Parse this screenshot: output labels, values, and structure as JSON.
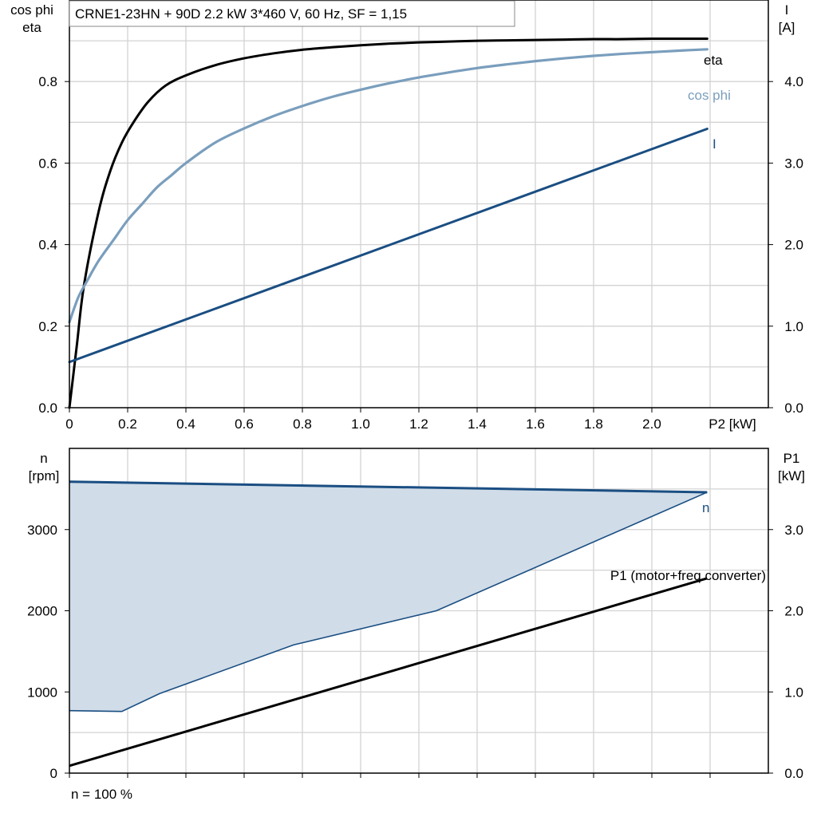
{
  "colors": {
    "eta": "#000000",
    "cos_phi": "#7a9ebd",
    "current": "#1a4e82",
    "speed": "#1a4e82",
    "speed_fill": "#d0dce8",
    "p1": "#000000",
    "grid": "#d3d3d3"
  },
  "footer_note": "n = 100 %",
  "chart_data": [
    {
      "type": "line",
      "title": "CRNE1-23HN + 90D   2.2 kW   3*460 V, 60 Hz, SF = 1,15",
      "ylabel_left": [
        "cos phi",
        "eta"
      ],
      "ylabel_right": [
        "I",
        "[A]"
      ],
      "xlabel": "P2 [kW]",
      "xlim": [
        0,
        2.4
      ],
      "ylim_left": [
        0,
        1.0
      ],
      "ylim_right": [
        0,
        5.0
      ],
      "x_ticks": [
        "0",
        "0.2",
        "0.4",
        "0.6",
        "0.8",
        "1.0",
        "1.2",
        "1.4",
        "1.6",
        "1.8",
        "2.0"
      ],
      "y_left_ticks": [
        "0.0",
        "0.2",
        "0.4",
        "0.6",
        "0.8"
      ],
      "y_right_ticks": [
        "0.0",
        "1.0",
        "2.0",
        "3.0",
        "4.0"
      ],
      "grid": true,
      "series": [
        {
          "name": "eta",
          "axis": "left",
          "x": [
            0,
            0.025,
            0.05,
            0.1,
            0.14,
            0.18,
            0.22,
            0.27,
            0.33,
            0.4,
            0.5,
            0.6,
            0.7,
            0.8,
            0.9,
            1.0,
            1.1,
            1.2,
            1.3,
            1.4,
            1.5,
            1.6,
            1.7,
            1.8,
            1.9,
            2.0,
            2.1,
            2.19
          ],
          "y": [
            0.0,
            0.15,
            0.3,
            0.48,
            0.58,
            0.65,
            0.7,
            0.75,
            0.79,
            0.815,
            0.84,
            0.857,
            0.869,
            0.878,
            0.884,
            0.889,
            0.893,
            0.896,
            0.898,
            0.9,
            0.901,
            0.902,
            0.903,
            0.904,
            0.904,
            0.905,
            0.905,
            0.905
          ]
        },
        {
          "name": "cos phi",
          "axis": "left",
          "x": [
            0,
            0.03,
            0.06,
            0.1,
            0.15,
            0.2,
            0.25,
            0.3,
            0.35,
            0.4,
            0.5,
            0.6,
            0.7,
            0.8,
            0.9,
            1.0,
            1.1,
            1.2,
            1.3,
            1.4,
            1.5,
            1.6,
            1.7,
            1.8,
            1.9,
            2.0,
            2.1,
            2.19
          ],
          "y": [
            0.21,
            0.27,
            0.31,
            0.36,
            0.41,
            0.46,
            0.5,
            0.54,
            0.57,
            0.6,
            0.65,
            0.685,
            0.715,
            0.74,
            0.762,
            0.78,
            0.796,
            0.81,
            0.822,
            0.833,
            0.842,
            0.85,
            0.857,
            0.863,
            0.868,
            0.872,
            0.876,
            0.879
          ]
        },
        {
          "name": "I",
          "axis": "right",
          "x": [
            0,
            2.19
          ],
          "y": [
            0.56,
            3.42
          ]
        }
      ]
    },
    {
      "type": "line",
      "ylabel_left": [
        "n",
        "[rpm]"
      ],
      "ylabel_right": [
        "P1",
        "[kW]"
      ],
      "xlim": [
        0,
        2.4
      ],
      "ylim_left": [
        0,
        4000
      ],
      "ylim_right": [
        0,
        4.0
      ],
      "y_left_ticks": [
        "0",
        "1000",
        "2000",
        "3000"
      ],
      "y_right_ticks": [
        "0.0",
        "1.0",
        "2.0",
        "3.0"
      ],
      "grid": true,
      "series": [
        {
          "name": "n",
          "axis": "left",
          "shaded_region": true,
          "upper_x": [
            0,
            2.19
          ],
          "upper_y": [
            3590,
            3460
          ],
          "lower_x": [
            0,
            0.18,
            0.31,
            0.77,
            1.26,
            2.19
          ],
          "lower_y": [
            770,
            760,
            980,
            1580,
            2000,
            3460
          ]
        },
        {
          "name": "P1 (motor+freq.converter)",
          "axis": "right",
          "x": [
            0,
            2.19
          ],
          "y": [
            0.09,
            2.4
          ]
        }
      ]
    }
  ]
}
